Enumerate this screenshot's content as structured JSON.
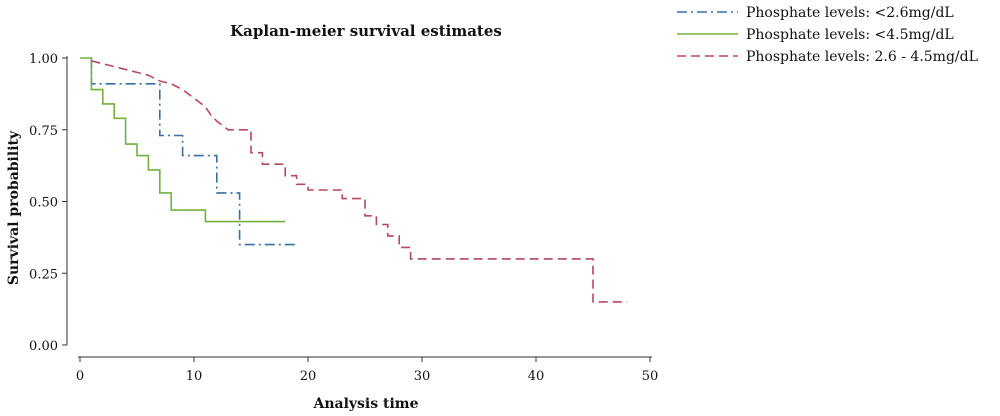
{
  "chart_data": {
    "type": "line",
    "title": "Kaplan-meier survival estimates",
    "xlabel": "Analysis time",
    "ylabel": "Survival probability",
    "xlim": [
      0,
      50
    ],
    "ylim": [
      0,
      1
    ],
    "xticks": [
      0,
      10,
      20,
      30,
      40,
      50
    ],
    "xtick_labels": [
      "0",
      "10",
      "20",
      "30",
      "40",
      "50"
    ],
    "yticks": [
      0,
      0.25,
      0.5,
      0.75,
      1
    ],
    "ytick_labels": [
      "0.00",
      "0.25",
      "0.50",
      "0.75",
      "1.00"
    ],
    "grid": false,
    "legend_position": "top-right, outside plot",
    "step": true,
    "series": [
      {
        "name": "Phosphate levels: <2.6mg/dL",
        "color": "#3a6ea5",
        "dash": "dash-dot",
        "points": [
          [
            1,
            1.0
          ],
          [
            1,
            0.91
          ],
          [
            7,
            0.91
          ],
          [
            7,
            0.73
          ],
          [
            9,
            0.73
          ],
          [
            9,
            0.66
          ],
          [
            12,
            0.66
          ],
          [
            12,
            0.53
          ],
          [
            14,
            0.53
          ],
          [
            14,
            0.35
          ],
          [
            19,
            0.35
          ]
        ]
      },
      {
        "name": "Phosphate levels: <4.5mg/dL",
        "color": "#74b040",
        "dash": "solid",
        "points": [
          [
            0,
            1.0
          ],
          [
            1,
            1.0
          ],
          [
            1,
            0.89
          ],
          [
            2,
            0.89
          ],
          [
            2,
            0.84
          ],
          [
            3,
            0.84
          ],
          [
            3,
            0.79
          ],
          [
            4,
            0.79
          ],
          [
            4,
            0.7
          ],
          [
            5,
            0.7
          ],
          [
            5,
            0.66
          ],
          [
            6,
            0.66
          ],
          [
            6,
            0.61
          ],
          [
            7,
            0.61
          ],
          [
            7,
            0.53
          ],
          [
            8,
            0.53
          ],
          [
            8,
            0.47
          ],
          [
            11,
            0.47
          ],
          [
            11,
            0.43
          ],
          [
            18,
            0.43
          ]
        ]
      },
      {
        "name": "Phosphate levels: 2.6 - 4.5mg/dL",
        "color": "#b5485f",
        "dash": "dashed",
        "points": [
          [
            1,
            0.99
          ],
          [
            2,
            0.98
          ],
          [
            3,
            0.97
          ],
          [
            4,
            0.96
          ],
          [
            5,
            0.95
          ],
          [
            6,
            0.94
          ],
          [
            7,
            0.92
          ],
          [
            8,
            0.91
          ],
          [
            9,
            0.89
          ],
          [
            10,
            0.86
          ],
          [
            11,
            0.83
          ],
          [
            11.5,
            0.8
          ],
          [
            12,
            0.78
          ],
          [
            13,
            0.75
          ],
          [
            15,
            0.75
          ],
          [
            15,
            0.67
          ],
          [
            16,
            0.67
          ],
          [
            16,
            0.63
          ],
          [
            18,
            0.63
          ],
          [
            18,
            0.59
          ],
          [
            19,
            0.59
          ],
          [
            19,
            0.56
          ],
          [
            20,
            0.56
          ],
          [
            20,
            0.54
          ],
          [
            23,
            0.54
          ],
          [
            23,
            0.51
          ],
          [
            25,
            0.51
          ],
          [
            25,
            0.45
          ],
          [
            26,
            0.45
          ],
          [
            26,
            0.42
          ],
          [
            27,
            0.42
          ],
          [
            27,
            0.38
          ],
          [
            28,
            0.38
          ],
          [
            28,
            0.34
          ],
          [
            29,
            0.34
          ],
          [
            29,
            0.3
          ],
          [
            45,
            0.3
          ],
          [
            45,
            0.15
          ],
          [
            48,
            0.15
          ]
        ]
      }
    ]
  }
}
